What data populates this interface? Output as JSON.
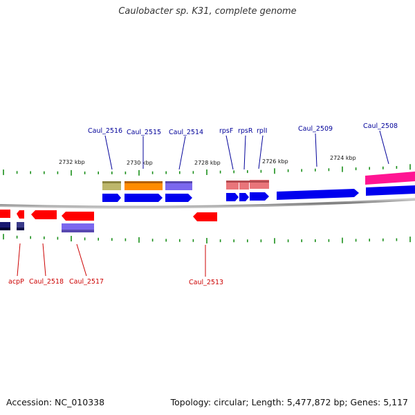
{
  "title": "Caulobacter sp. K31, complete genome",
  "footer": {
    "accession": "Accession: NC_010338",
    "stats": "Topology: circular; Length: 5,477,872 bp; Genes: 5,117"
  },
  "colors": {
    "backbone": "#8a8a8a",
    "tick": "#1a8f1a",
    "plus_label": "#000099",
    "minus_label": "#cc0000",
    "ruler_label": "#111111"
  },
  "ruler": {
    "labels": [
      "2732 kbp",
      "2730 kbp",
      "2728 kbp",
      "2726 kbp",
      "2724 kbp"
    ]
  },
  "plus_genes": [
    {
      "label": "Caul_2516",
      "color": "#bdb76b"
    },
    {
      "label": "Caul_2515",
      "color": "#ff8c00"
    },
    {
      "label": "Caul_2514",
      "color": "#7b68ee"
    },
    {
      "label": "rpsF",
      "color": "#e9757a"
    },
    {
      "label": "rpsR",
      "color": "#e9757a"
    },
    {
      "label": "rplI",
      "color": "#e9757a"
    },
    {
      "label": "Caul_2509",
      "color": "#0000ff"
    },
    {
      "label": "Caul_2508",
      "color": "#ff1493"
    }
  ],
  "minus_genes": [
    {
      "label": "acpP",
      "color": "#ff0000"
    },
    {
      "label": "Caul_2518",
      "color": "#ff0000"
    },
    {
      "label": "Caul_2517",
      "color": "#ff0000"
    },
    {
      "label": "Caul_2513",
      "color": "#ff0000"
    }
  ]
}
